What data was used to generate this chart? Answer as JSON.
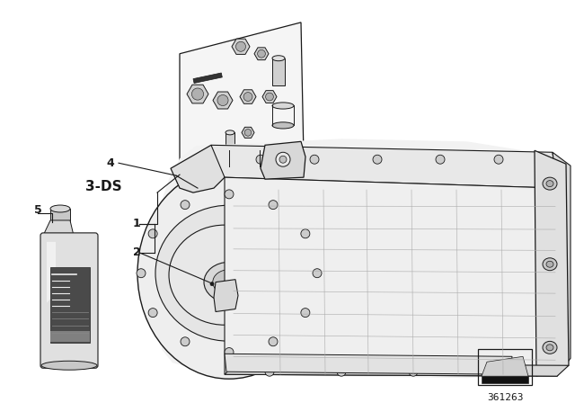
{
  "background_color": "#ffffff",
  "fig_width": 6.4,
  "fig_height": 4.48,
  "dpi": 100,
  "label_3ds": "3-DS",
  "label_4": "4",
  "label_1": "1",
  "label_2": "2",
  "label_5": "5",
  "part_number": "361263",
  "font_size_label": 9,
  "font_size_3ds": 11,
  "font_size_part": 8,
  "line_color": "#1a1a1a",
  "gray1": "#e8e8e8",
  "gray2": "#c8c8c8",
  "gray3": "#a0a0a0",
  "gray4": "#606060",
  "gray5": "#404040"
}
